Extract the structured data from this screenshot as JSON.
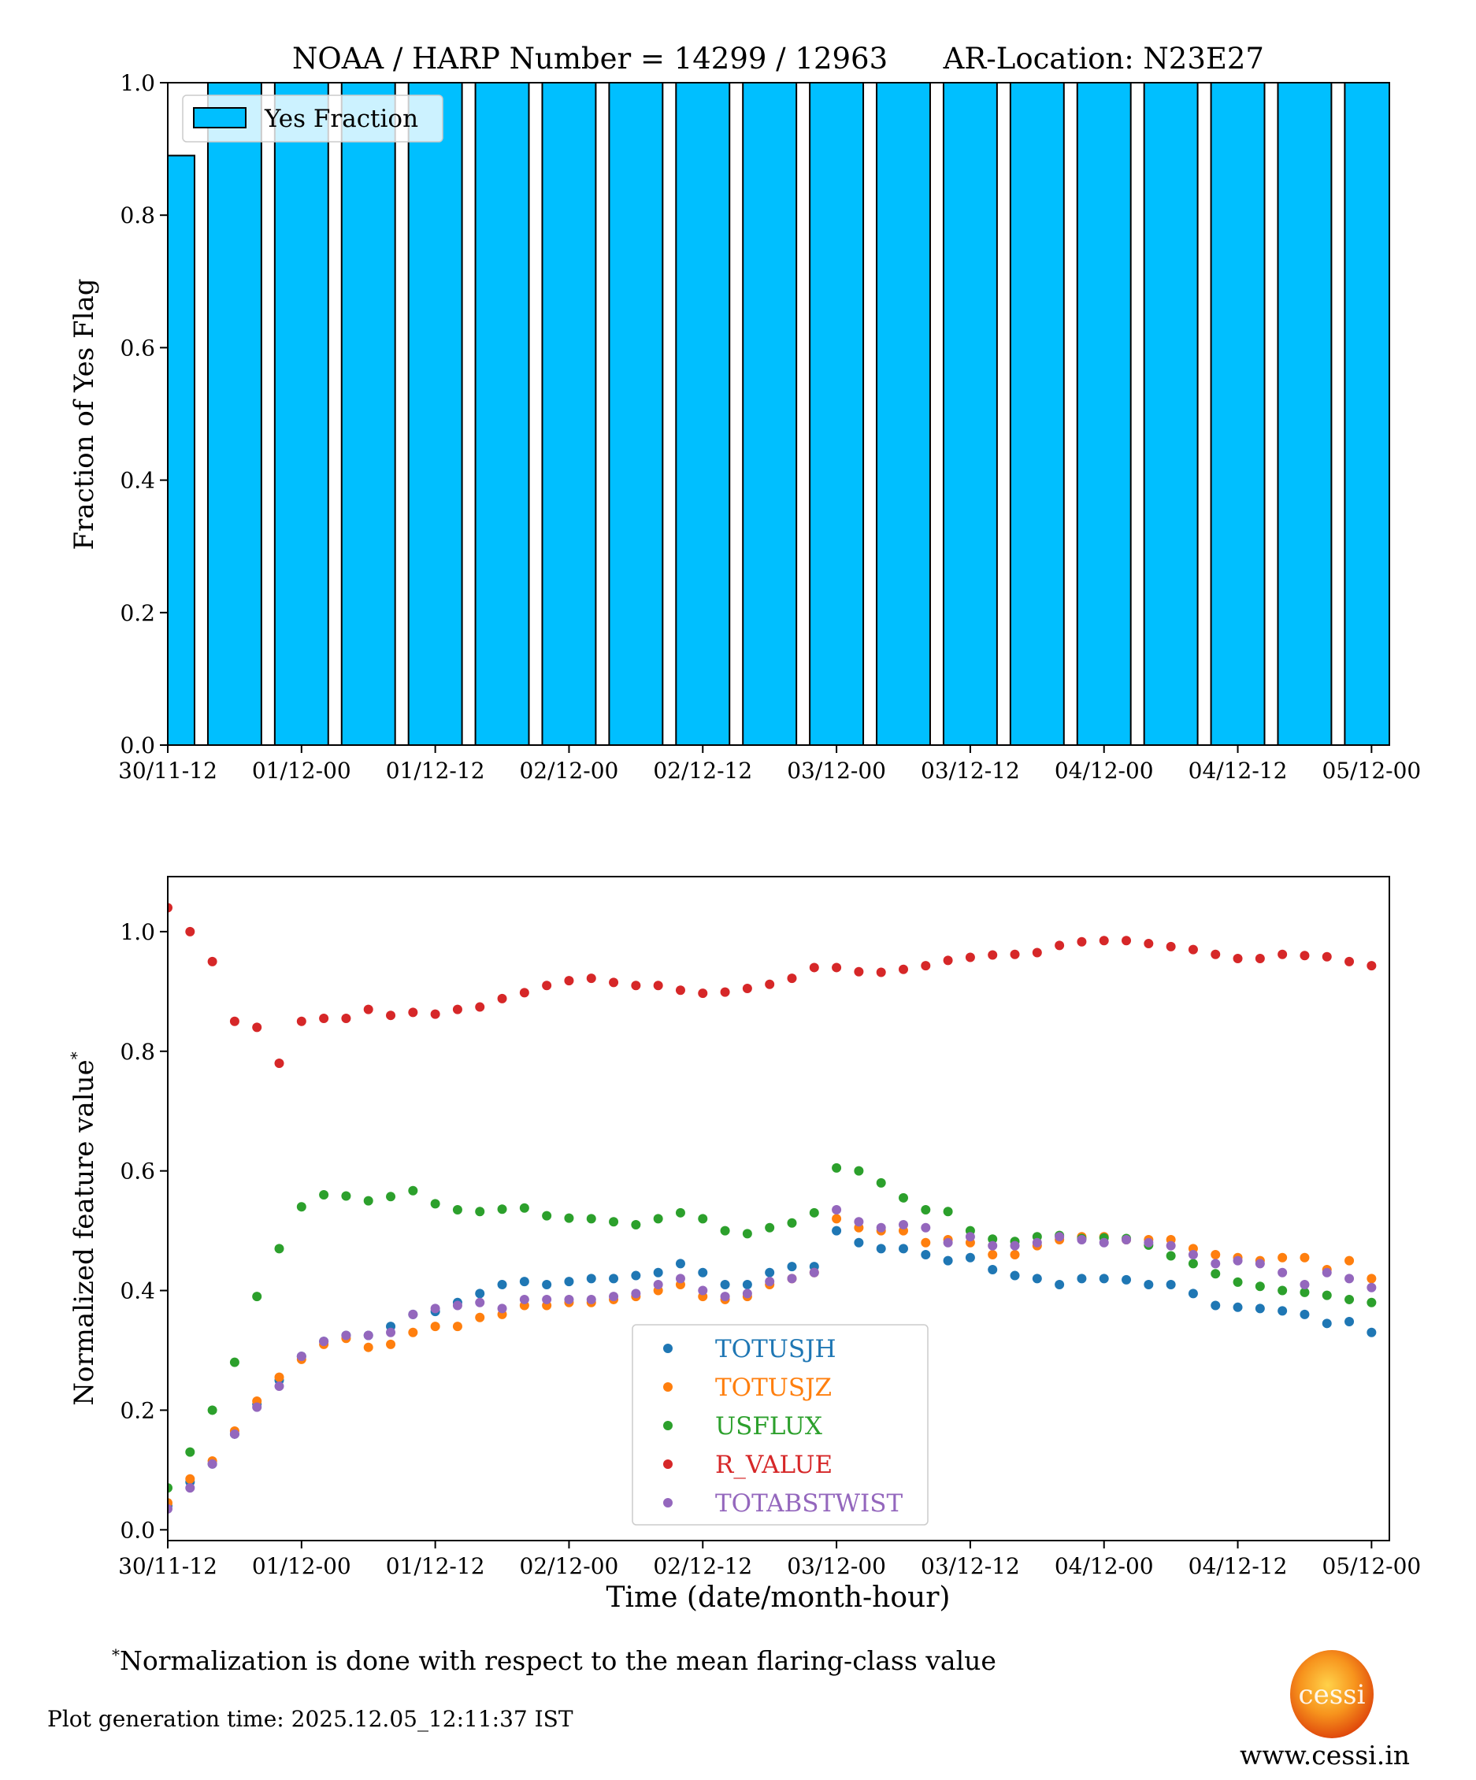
{
  "chart_data": [
    {
      "type": "bar",
      "title": "NOAA / HARP Number = 14299 / 12963      AR-Location: N23E27",
      "xlabel": "",
      "ylabel": "Fraction of Yes Flag",
      "ylim": [
        0,
        1.0
      ],
      "xlim_hours_from_first_tick": [
        0,
        109.6
      ],
      "x_tick_labels": [
        "30/11-12",
        "01/12-00",
        "01/12-12",
        "02/12-00",
        "02/12-12",
        "03/12-00",
        "03/12-12",
        "04/12-00",
        "04/12-12",
        "05/12-00"
      ],
      "y_tick_labels": [
        "0.0",
        "0.2",
        "0.4",
        "0.6",
        "0.8",
        "1.0"
      ],
      "legend": {
        "entries": [
          "Yes Fraction"
        ],
        "placement": "top-left"
      },
      "bar_color": "#00bfff",
      "bar_edge_color": "#000000",
      "bar_hours": [
        0,
        6,
        12,
        18,
        24,
        30,
        36,
        42,
        48,
        54,
        60,
        66,
        72,
        78,
        84,
        90,
        96,
        102,
        108
      ],
      "bar_width_hours": 4.8,
      "values": [
        0.89,
        1,
        1,
        1,
        1,
        1,
        1,
        1,
        1,
        1,
        1,
        1,
        1,
        1,
        1,
        1,
        1,
        1,
        1
      ]
    },
    {
      "type": "scatter",
      "xlabel": "Time (date/month-hour)",
      "ylabel": "Normalized feature value",
      "ylabel_superscript": "*",
      "ylim": [
        -0.018,
        1.092
      ],
      "xlim_hours_from_first_tick": [
        0,
        109.6
      ],
      "x_tick_labels": [
        "30/11-12",
        "01/12-00",
        "01/12-12",
        "02/12-00",
        "02/12-12",
        "03/12-00",
        "03/12-12",
        "04/12-00",
        "04/12-12",
        "05/12-00"
      ],
      "y_tick_labels": [
        "0.0",
        "0.2",
        "0.4",
        "0.6",
        "0.8",
        "1.0"
      ],
      "legend": {
        "placement": "lower-center"
      },
      "x_hours": [
        0,
        2,
        4,
        6,
        8,
        10,
        12,
        14,
        16,
        18,
        20,
        22,
        24,
        26,
        28,
        30,
        32,
        34,
        36,
        38,
        40,
        42,
        44,
        46,
        48,
        50,
        52,
        54,
        56,
        58,
        60,
        62,
        64,
        66,
        68,
        70,
        72,
        74,
        76,
        78,
        80,
        82,
        84,
        86,
        88,
        90,
        92,
        94,
        96,
        98,
        100,
        102,
        104,
        106,
        108
      ],
      "series": [
        {
          "name": "TOTUSJH",
          "color": "#1f77b4",
          "values": [
            0.04,
            0.08,
            0.11,
            0.16,
            0.21,
            0.25,
            0.29,
            0.315,
            0.325,
            0.325,
            0.34,
            0.36,
            0.365,
            0.38,
            0.395,
            0.41,
            0.415,
            0.41,
            0.415,
            0.42,
            0.42,
            0.425,
            0.43,
            0.445,
            0.43,
            0.41,
            0.41,
            0.43,
            0.44,
            0.44,
            0.5,
            0.48,
            0.47,
            0.47,
            0.46,
            0.45,
            0.455,
            0.435,
            0.425,
            0.42,
            0.41,
            0.42,
            0.42,
            0.418,
            0.41,
            0.41,
            0.395,
            0.375,
            0.372,
            0.37,
            0.366,
            0.36,
            0.345,
            0.348,
            0.33
          ]
        },
        {
          "name": "TOTUSJZ",
          "color": "#ff7f0e",
          "values": [
            0.045,
            0.085,
            0.115,
            0.165,
            0.215,
            0.255,
            0.285,
            0.31,
            0.32,
            0.305,
            0.31,
            0.33,
            0.34,
            0.34,
            0.355,
            0.36,
            0.375,
            0.375,
            0.38,
            0.38,
            0.385,
            0.39,
            0.4,
            0.41,
            0.39,
            0.385,
            0.39,
            0.41,
            0.42,
            0.43,
            0.52,
            0.505,
            0.5,
            0.5,
            0.48,
            0.485,
            0.48,
            0.46,
            0.46,
            0.475,
            0.485,
            0.49,
            0.49,
            0.485,
            0.485,
            0.485,
            0.47,
            0.46,
            0.455,
            0.45,
            0.455,
            0.455,
            0.435,
            0.45,
            0.42
          ]
        },
        {
          "name": "USFLUX",
          "color": "#2ca02c",
          "values": [
            0.07,
            0.13,
            0.2,
            0.28,
            0.39,
            0.47,
            0.54,
            0.56,
            0.558,
            0.55,
            0.557,
            0.567,
            0.545,
            0.535,
            0.532,
            0.536,
            0.538,
            0.525,
            0.521,
            0.52,
            0.515,
            0.51,
            0.52,
            0.53,
            0.52,
            0.5,
            0.495,
            0.505,
            0.513,
            0.53,
            0.605,
            0.6,
            0.58,
            0.555,
            0.535,
            0.532,
            0.5,
            0.486,
            0.482,
            0.49,
            0.492,
            0.487,
            0.488,
            0.487,
            0.476,
            0.458,
            0.445,
            0.428,
            0.414,
            0.407,
            0.4,
            0.397,
            0.392,
            0.385,
            0.38
          ]
        },
        {
          "name": "R_VALUE",
          "color": "#d62728",
          "values": [
            1.04,
            1.0,
            0.95,
            0.85,
            0.84,
            0.78,
            0.85,
            0.855,
            0.855,
            0.87,
            0.86,
            0.865,
            0.862,
            0.87,
            0.874,
            0.888,
            0.898,
            0.91,
            0.918,
            0.922,
            0.915,
            0.91,
            0.91,
            0.902,
            0.897,
            0.899,
            0.905,
            0.912,
            0.922,
            0.94,
            0.94,
            0.933,
            0.932,
            0.937,
            0.943,
            0.952,
            0.957,
            0.961,
            0.962,
            0.965,
            0.977,
            0.983,
            0.985,
            0.985,
            0.98,
            0.975,
            0.97,
            0.962,
            0.955,
            0.955,
            0.962,
            0.96,
            0.958,
            0.95,
            0.943
          ]
        },
        {
          "name": "TOTABSTWIST",
          "color": "#9467bd",
          "values": [
            0.035,
            0.07,
            0.11,
            0.16,
            0.205,
            0.24,
            0.29,
            0.315,
            0.325,
            0.325,
            0.33,
            0.36,
            0.37,
            0.375,
            0.38,
            0.37,
            0.385,
            0.385,
            0.385,
            0.385,
            0.39,
            0.395,
            0.41,
            0.42,
            0.4,
            0.39,
            0.395,
            0.415,
            0.42,
            0.43,
            0.535,
            0.515,
            0.505,
            0.51,
            0.505,
            0.48,
            0.49,
            0.475,
            0.475,
            0.48,
            0.49,
            0.485,
            0.48,
            0.485,
            0.48,
            0.475,
            0.46,
            0.445,
            0.45,
            0.445,
            0.43,
            0.41,
            0.43,
            0.42,
            0.405
          ]
        }
      ]
    }
  ],
  "footnote": {
    "marker": "*",
    "text": "Normalization is done with respect to the mean flaring-class value"
  },
  "generation_time": "Plot generation time: 2025.12.05_12:11:37 IST",
  "logo": {
    "text": "cessi",
    "url_text": "www.cessi.in"
  }
}
